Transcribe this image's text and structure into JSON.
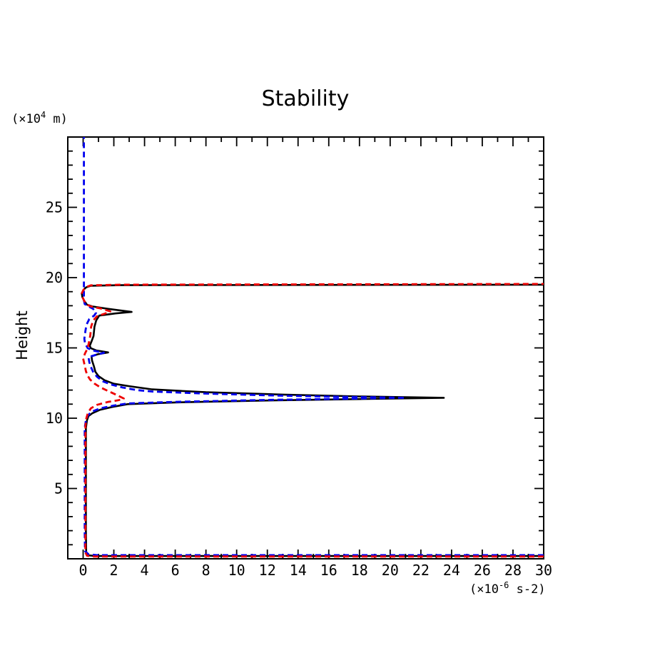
{
  "chart_data": {
    "type": "line",
    "title": "Stability",
    "grid": false,
    "legend": null,
    "x_axis": {
      "units_prefix": "(×10",
      "units_exp": "-6",
      "units_suffix": " s-2)",
      "lim": [
        -1,
        30
      ],
      "major_ticks": [
        0,
        2,
        4,
        6,
        8,
        10,
        12,
        14,
        16,
        18,
        20,
        22,
        24,
        26,
        28,
        30
      ],
      "tick_labels": [
        "0",
        "2",
        "4",
        "6",
        "8",
        "10",
        "12",
        "14",
        "16",
        "18",
        "20",
        "22",
        "24",
        "26",
        "28",
        "30"
      ],
      "minor_ticks": [
        1,
        3,
        5,
        7,
        9,
        11,
        13,
        15,
        17,
        19,
        21,
        23,
        25,
        27,
        29
      ]
    },
    "y_axis": {
      "label": "Height",
      "units_prefix": "(×10",
      "units_exp": "4",
      "units_suffix": " m)",
      "lim": [
        0,
        30
      ],
      "major_ticks": [
        5,
        10,
        15,
        20,
        25
      ],
      "tick_labels": [
        "5",
        "10",
        "15",
        "20",
        "25"
      ],
      "minor_ticks": [
        1,
        2,
        3,
        4,
        6,
        7,
        8,
        9,
        11,
        12,
        13,
        14,
        16,
        17,
        18,
        19,
        21,
        22,
        23,
        24,
        26,
        27,
        28,
        29
      ]
    },
    "series": [
      {
        "name": "black-solid",
        "color": "#000000",
        "style": "solid",
        "points": [
          [
            30,
            0.2
          ],
          [
            0.8,
            0.2
          ],
          [
            0.3,
            0.25
          ],
          [
            0.2,
            0.45
          ],
          [
            0.18,
            2
          ],
          [
            0.18,
            7
          ],
          [
            0.18,
            9.3
          ],
          [
            0.25,
            9.85
          ],
          [
            0.35,
            10.15
          ],
          [
            0.6,
            10.35
          ],
          [
            1.1,
            10.6
          ],
          [
            1.9,
            10.8
          ],
          [
            2.9,
            11.0
          ],
          [
            6,
            11.12
          ],
          [
            12,
            11.26
          ],
          [
            18,
            11.36
          ],
          [
            23.5,
            11.45
          ],
          [
            18,
            11.55
          ],
          [
            13,
            11.68
          ],
          [
            8,
            11.85
          ],
          [
            4.5,
            12.05
          ],
          [
            3,
            12.28
          ],
          [
            2,
            12.45
          ],
          [
            1.4,
            12.7
          ],
          [
            1,
            13
          ],
          [
            0.8,
            13.3
          ],
          [
            0.7,
            13.7
          ],
          [
            0.58,
            14.1
          ],
          [
            0.55,
            14.4
          ],
          [
            0.95,
            14.55
          ],
          [
            1.63,
            14.68
          ],
          [
            0.85,
            14.82
          ],
          [
            0.5,
            14.98
          ],
          [
            0.43,
            15.15
          ],
          [
            0.56,
            15.5
          ],
          [
            0.68,
            15.85
          ],
          [
            0.74,
            16.5
          ],
          [
            0.85,
            16.95
          ],
          [
            1.05,
            17.3
          ],
          [
            2.1,
            17.45
          ],
          [
            3.16,
            17.56
          ],
          [
            1.6,
            17.78
          ],
          [
            0.6,
            17.95
          ],
          [
            0.24,
            18.08
          ],
          [
            0.07,
            18.35
          ],
          [
            -0.05,
            18.62
          ],
          [
            -0.09,
            18.88
          ],
          [
            0.02,
            19.12
          ],
          [
            0.18,
            19.3
          ],
          [
            0.5,
            19.42
          ],
          [
            2.5,
            19.46
          ],
          [
            30,
            19.5
          ]
        ]
      },
      {
        "name": "blue-dashed",
        "color": "#0000ee",
        "style": "dashed",
        "points": [
          [
            30,
            0.26
          ],
          [
            0.9,
            0.26
          ],
          [
            0.35,
            0.32
          ],
          [
            0.12,
            0.55
          ],
          [
            0.1,
            2
          ],
          [
            0.1,
            7
          ],
          [
            0.1,
            9.3
          ],
          [
            0.18,
            9.85
          ],
          [
            0.3,
            10.2
          ],
          [
            0.55,
            10.45
          ],
          [
            1.1,
            10.7
          ],
          [
            2,
            10.9
          ],
          [
            2.9,
            11.05
          ],
          [
            6,
            11.16
          ],
          [
            12,
            11.3
          ],
          [
            17,
            11.38
          ],
          [
            21,
            11.45
          ],
          [
            17,
            11.52
          ],
          [
            13,
            11.6
          ],
          [
            8,
            11.75
          ],
          [
            4.5,
            11.9
          ],
          [
            3.5,
            12.0
          ],
          [
            2.6,
            12.18
          ],
          [
            1.8,
            12.4
          ],
          [
            1.3,
            12.62
          ],
          [
            0.9,
            12.95
          ],
          [
            0.65,
            13.3
          ],
          [
            0.5,
            13.65
          ],
          [
            0.4,
            14.0
          ],
          [
            0.35,
            14.35
          ],
          [
            0.8,
            14.5
          ],
          [
            1.35,
            14.65
          ],
          [
            0.7,
            14.8
          ],
          [
            0.3,
            14.98
          ],
          [
            0.13,
            15.3
          ],
          [
            0.08,
            15.65
          ],
          [
            0.15,
            16.2
          ],
          [
            0.22,
            16.65
          ],
          [
            0.4,
            17.05
          ],
          [
            0.72,
            17.3
          ],
          [
            0.84,
            17.5
          ],
          [
            0.65,
            17.78
          ],
          [
            0.3,
            17.98
          ],
          [
            0.1,
            18.12
          ],
          [
            0.05,
            18.4
          ],
          [
            0.05,
            20
          ],
          [
            0.05,
            25
          ],
          [
            0.05,
            30
          ]
        ]
      },
      {
        "name": "red-dashed",
        "color": "#ee0000",
        "style": "dashed",
        "points": [
          [
            30,
            0.16
          ],
          [
            0.7,
            0.16
          ],
          [
            0.25,
            0.22
          ],
          [
            0.15,
            0.45
          ],
          [
            0.15,
            2
          ],
          [
            0.15,
            7
          ],
          [
            0.15,
            9.4
          ],
          [
            0.2,
            9.95
          ],
          [
            0.3,
            10.35
          ],
          [
            0.5,
            10.7
          ],
          [
            0.9,
            10.95
          ],
          [
            1.6,
            11.15
          ],
          [
            2.3,
            11.28
          ],
          [
            2.65,
            11.4
          ],
          [
            2.25,
            11.62
          ],
          [
            1.6,
            11.95
          ],
          [
            1.15,
            12.18
          ],
          [
            0.75,
            12.45
          ],
          [
            0.45,
            12.75
          ],
          [
            0.28,
            13.05
          ],
          [
            0.18,
            13.35
          ],
          [
            0.1,
            13.75
          ],
          [
            0.0,
            14.25
          ],
          [
            0.12,
            14.6
          ],
          [
            0.3,
            15.0
          ],
          [
            0.4,
            15.5
          ],
          [
            0.47,
            15.9
          ],
          [
            0.52,
            16.5
          ],
          [
            0.65,
            16.95
          ],
          [
            0.9,
            17.25
          ],
          [
            1.45,
            17.45
          ],
          [
            1.77,
            17.6
          ],
          [
            1.15,
            17.8
          ],
          [
            0.5,
            17.95
          ],
          [
            0.24,
            18.08
          ],
          [
            0.07,
            18.35
          ],
          [
            -0.05,
            18.62
          ],
          [
            -0.09,
            18.88
          ],
          [
            0.02,
            19.12
          ],
          [
            0.18,
            19.32
          ],
          [
            0.5,
            19.45
          ],
          [
            2.5,
            19.5
          ],
          [
            30,
            19.55
          ]
        ]
      }
    ]
  }
}
